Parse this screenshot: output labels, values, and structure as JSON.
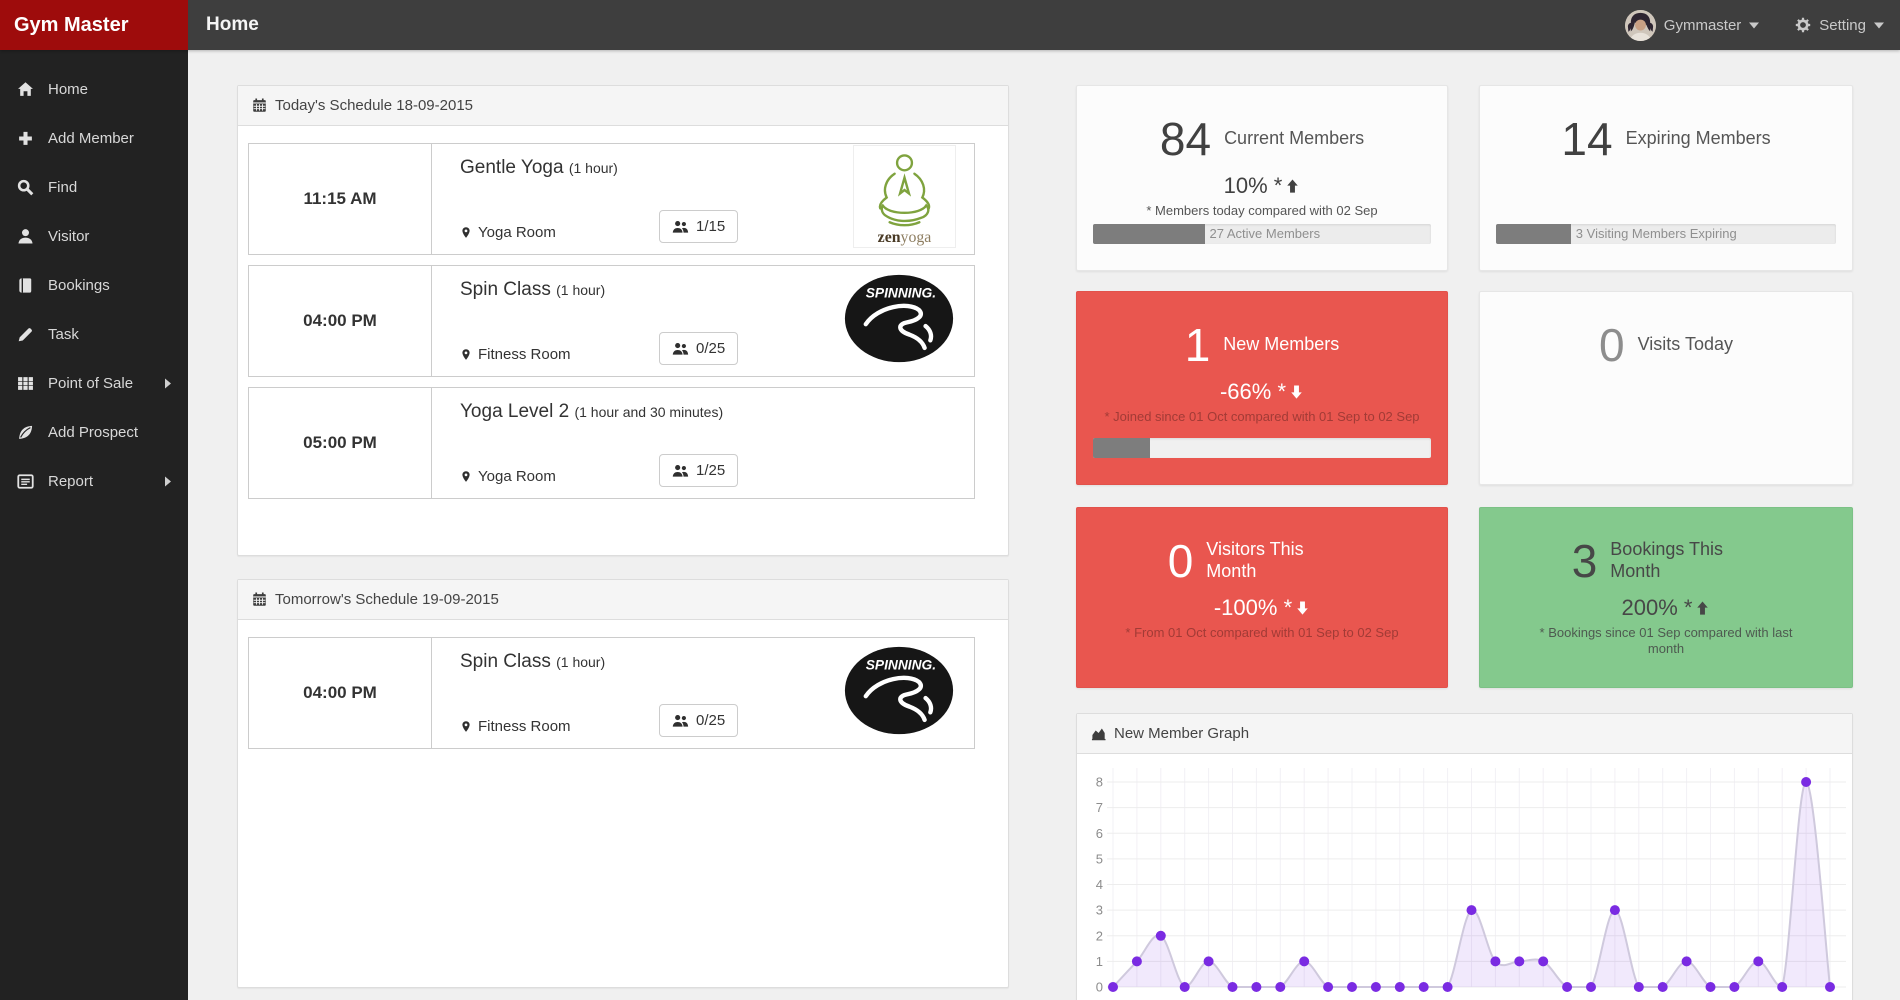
{
  "colors": {
    "brand_red": "#9e0c0c",
    "card_red": "#e9564f",
    "card_green": "#84c98d",
    "chart_purple": "#7a2be2"
  },
  "navbar": {
    "brand": "Gym Master",
    "page_title": "Home",
    "user_name": "Gymmaster",
    "settings_label": "Setting"
  },
  "sidebar": {
    "items": [
      {
        "label": "Home",
        "icon": "home-icon"
      },
      {
        "label": "Add Member",
        "icon": "plus-icon"
      },
      {
        "label": "Find",
        "icon": "search-icon"
      },
      {
        "label": "Visitor",
        "icon": "user-icon"
      },
      {
        "label": "Bookings",
        "icon": "book-icon"
      },
      {
        "label": "Task",
        "icon": "pencil-icon"
      },
      {
        "label": "Point of Sale",
        "icon": "grid-icon",
        "has_submenu": true
      },
      {
        "label": "Add Prospect",
        "icon": "leaf-icon"
      },
      {
        "label": "Report",
        "icon": "report-icon",
        "has_submenu": true
      }
    ]
  },
  "schedules": [
    {
      "title": "Today's Schedule 18-09-2015",
      "rows": [
        {
          "time": "11:15 AM",
          "name": "Gentle Yoga",
          "duration": "(1 hour)",
          "room": "Yoga Room",
          "capacity": "1/15",
          "logo": "zen-yoga"
        },
        {
          "time": "04:00 PM",
          "name": "Spin Class",
          "duration": "(1 hour)",
          "room": "Fitness Room",
          "capacity": "0/25",
          "logo": "spinning"
        },
        {
          "time": "05:00 PM",
          "name": "Yoga Level 2",
          "duration": "(1 hour and 30 minutes)",
          "room": "Yoga Room",
          "capacity": "1/25",
          "logo": ""
        }
      ]
    },
    {
      "title": "Tomorrow's Schedule 19-09-2015",
      "rows": [
        {
          "time": "04:00 PM",
          "name": "Spin Class",
          "duration": "(1 hour)",
          "room": "Fitness Room",
          "capacity": "0/25",
          "logo": "spinning"
        }
      ]
    }
  ],
  "stat_cards": [
    {
      "value": "84",
      "label": "Current Members",
      "change": "10% *",
      "trend": "up",
      "note": "* Members today compared with 02 Sep",
      "progress_pct": 33,
      "progress_label": "27 Active Members",
      "style": "light"
    },
    {
      "value": "14",
      "label": "Expiring Members",
      "progress_pct": 22,
      "progress_label": "3 Visiting Members Expiring",
      "style": "light"
    },
    {
      "value": "1",
      "label": "New Members",
      "change": "-66% *",
      "trend": "down",
      "note": "* Joined since 01 Oct compared with 01 Sep to 02 Sep",
      "progress_pct": 17,
      "progress_label": "",
      "style": "red"
    },
    {
      "value": "0",
      "label": "Visits Today",
      "style": "light"
    },
    {
      "value": "0",
      "label": "Visitors This Month",
      "change": "-100% *",
      "trend": "down",
      "note": "* From 01 Oct compared with 01 Sep to 02 Sep",
      "style": "red"
    },
    {
      "value": "3",
      "label": "Bookings This Month",
      "change": "200% *",
      "trend": "up",
      "note": "* Bookings since 01 Sep compared with last month",
      "style": "green"
    }
  ],
  "logos": {
    "zen_yoga_zen": "zen",
    "zen_yoga_yoga": "yoga",
    "spinning_text": "SPINNING."
  },
  "chart_data": {
    "type": "area",
    "title": "New Member Graph",
    "values": [
      0,
      1,
      2,
      0,
      1,
      0,
      0,
      0,
      1,
      0,
      0,
      0,
      0,
      0,
      0,
      3,
      1,
      1,
      1,
      0,
      0,
      3,
      0,
      0,
      1,
      0,
      0,
      1,
      0,
      8,
      0
    ],
    "ylim": [
      0,
      8
    ],
    "yticks": [
      0,
      1,
      2,
      3,
      4,
      5,
      6,
      7,
      8
    ],
    "x_labels_visible": false,
    "grid": true,
    "legend": false,
    "point_color": "#7a2be2",
    "line_color": "#cfc9dd",
    "fill_color": "rgba(122,43,226,0.10)"
  }
}
